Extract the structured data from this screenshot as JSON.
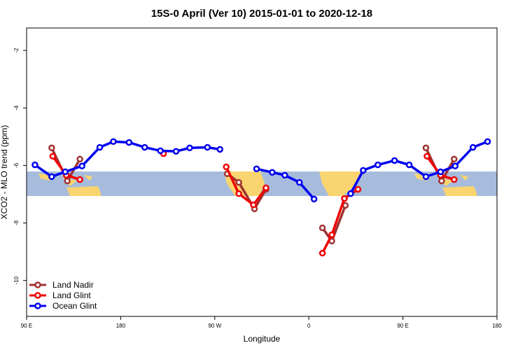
{
  "chart_data": {
    "type": "line",
    "title": "15S-0 April (Ver 10)   2015-01-01 to 2020-12-18",
    "x_label": "Longitude",
    "y_label": "XCO2 - MLO trend (ppm)",
    "xlim": [
      90,
      540
    ],
    "ylim": [
      -11.25,
      -1.22
    ],
    "xticks": [
      {
        "value": 90,
        "label": "90 E"
      },
      180,
      {
        "value": 270,
        "label": "90 W"
      },
      {
        "value": 360,
        "label": "0"
      },
      {
        "value": 450,
        "label": "90 E"
      },
      {
        "value": 540,
        "label": "180"
      }
    ],
    "yticks": [
      -10,
      -8,
      -6,
      -4,
      -2
    ],
    "legend": "bottom-left",
    "series": [
      {
        "name": "Land Nadir",
        "color": "#a03232",
        "x": [
          114,
          129,
          141,
          null,
          282,
          293,
          308,
          319,
          null,
          373,
          382,
          395,
          null,
          472,
          487,
          499
        ],
        "values": [
          -5.39,
          -6.54,
          -5.78,
          null,
          -6.29,
          -6.59,
          -7.51,
          -6.83,
          null,
          -8.17,
          -8.63,
          -7.39,
          null,
          -5.39,
          -6.54,
          -5.78
        ]
      },
      {
        "name": "Land Glint",
        "color": "#f00000",
        "x": [
          115,
          128,
          141,
          null,
          221,
          null,
          281,
          293,
          307,
          319,
          null,
          373,
          382,
          394,
          407,
          null,
          473,
          486,
          499
        ],
        "values": [
          -5.68,
          -6.34,
          -6.49,
          null,
          -5.59,
          null,
          -6.05,
          -6.98,
          -7.37,
          -6.78,
          null,
          -9.05,
          -8.41,
          -7.15,
          -6.83,
          null,
          -5.68,
          -6.34,
          -6.49
        ]
      },
      {
        "name": "Ocean Glint",
        "color": "#0000f0",
        "x": [
          98,
          114,
          127,
          143,
          160,
          173,
          188,
          203,
          218,
          233,
          246,
          263,
          275,
          null,
          310,
          325,
          337,
          351,
          365,
          null,
          400,
          412,
          426,
          442,
          456,
          472,
          486,
          500,
          517,
          531
        ],
        "values": [
          -5.98,
          -6.39,
          -6.22,
          -6.02,
          -5.37,
          -5.17,
          -5.2,
          -5.37,
          -5.49,
          -5.51,
          -5.39,
          -5.37,
          -5.44,
          null,
          -6.12,
          -6.24,
          -6.34,
          -6.59,
          -7.17,
          null,
          -6.98,
          -6.17,
          -5.98,
          -5.83,
          -5.98,
          -6.39,
          -6.22,
          -6.02,
          -5.37,
          -5.17
        ]
      }
    ]
  }
}
